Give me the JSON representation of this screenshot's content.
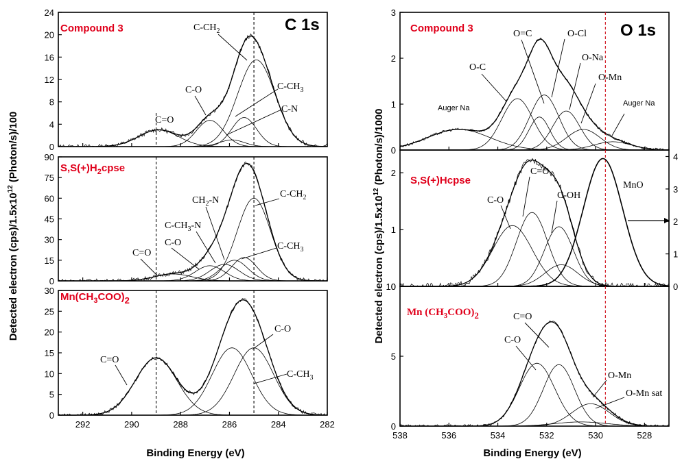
{
  "xlabel_left": "Binding Energy (eV)",
  "xlabel_right": "Binding Energy (eV)",
  "ylabel_left": "Detected electron (cps)/1.5x10¹² (Photon/s)/100",
  "ylabel_right": "Detected electron (cps)/1.5x10¹² (Photon/s)/1000",
  "chart_data": [
    {
      "id": "c1s_compound3",
      "type": "line",
      "core": "C 1s",
      "sample": "Compound 3",
      "xlim": [
        293,
        282
      ],
      "ylim": [
        0,
        24
      ],
      "xticks": [
        292,
        290,
        288,
        286,
        284,
        282
      ],
      "yticks": [
        0,
        4,
        8,
        12,
        16,
        20,
        24
      ],
      "peaks": [
        {
          "label": "C=O",
          "center": 288.9,
          "height": 3.0,
          "fwhm": 1.9
        },
        {
          "label": "C-O",
          "center": 286.8,
          "height": 4.7,
          "fwhm": 1.3
        },
        {
          "label": "C-CH3",
          "center": 285.4,
          "height": 5.2,
          "fwhm": 1.2
        },
        {
          "label": "C-N",
          "center": 285.9,
          "height": 1.2,
          "fwhm": 1.2
        },
        {
          "label": "C-CH2",
          "center": 284.9,
          "height": 15.5,
          "fwhm": 1.8
        },
        {
          "label": "",
          "center": 285.6,
          "height": 0.0,
          "fwhm": 1.0
        }
      ],
      "dashed_lines": [
        289.0,
        285.0
      ]
    },
    {
      "id": "c1s_ssh2cpse",
      "type": "line",
      "sample": "S,S(+)H2cpse",
      "xlim": [
        293,
        282
      ],
      "ylim": [
        0,
        90
      ],
      "xticks": [
        292,
        290,
        288,
        286,
        284,
        282
      ],
      "yticks": [
        0,
        15,
        30,
        45,
        60,
        75,
        90
      ],
      "peaks": [
        {
          "label": "C=O",
          "center": 288.3,
          "height": 5.0,
          "fwhm": 1.8
        },
        {
          "label": "C-O",
          "center": 286.8,
          "height": 11.0,
          "fwhm": 1.4
        },
        {
          "label": "C-CH3-N",
          "center": 286.2,
          "height": 12.0,
          "fwhm": 1.4
        },
        {
          "label": "CH2-N",
          "center": 285.8,
          "height": 15.0,
          "fwhm": 1.3
        },
        {
          "label": "C-CH3",
          "center": 285.4,
          "height": 17.0,
          "fwhm": 1.2
        },
        {
          "label": "C-CH2",
          "center": 285.0,
          "height": 60.0,
          "fwhm": 1.6
        }
      ],
      "dashed_lines": [
        289.0,
        285.0
      ]
    },
    {
      "id": "c1s_mnac",
      "type": "line",
      "sample": "Mn(CH3COO)2",
      "xlim": [
        293,
        282
      ],
      "ylim": [
        0,
        30
      ],
      "xticks": [
        292,
        290,
        288,
        286,
        284,
        282
      ],
      "xtick_labels": [
        "292",
        "290",
        "288",
        "286",
        "284",
        "282"
      ],
      "yticks": [
        0,
        5,
        10,
        15,
        20,
        25,
        30
      ],
      "peaks": [
        {
          "label": "C=O",
          "center": 289.0,
          "height": 13.8,
          "fwhm": 2.0
        },
        {
          "label": "C-O",
          "center": 285.9,
          "height": 16.2,
          "fwhm": 1.9
        },
        {
          "label": "C-CH3",
          "center": 285.0,
          "height": 16.2,
          "fwhm": 1.9
        }
      ],
      "dashed_lines": [
        289.0,
        285.0
      ]
    },
    {
      "id": "o1s_compound3",
      "type": "line",
      "core": "O 1s",
      "sample": "Compound 3",
      "xlim": [
        538,
        527
      ],
      "ylim": [
        0,
        3
      ],
      "yticks": [
        0,
        1,
        2,
        3
      ],
      "peaks": [
        {
          "label": "Auger Na",
          "center": 535.6,
          "height": 0.45,
          "fwhm": 3.0
        },
        {
          "label": "O-C",
          "center": 533.2,
          "height": 1.12,
          "fwhm": 1.5
        },
        {
          "label": "O=C",
          "center": 532.3,
          "height": 0.72,
          "fwhm": 1.0
        },
        {
          "label": "O-Cl",
          "center": 532.1,
          "height": 1.2,
          "fwhm": 1.4
        },
        {
          "label": "O-Na",
          "center": 531.2,
          "height": 0.85,
          "fwhm": 1.3
        },
        {
          "label": "O-Mn",
          "center": 530.5,
          "height": 0.45,
          "fwhm": 1.6
        },
        {
          "label": "Auger Na",
          "center": 529.3,
          "height": 0.18,
          "fwhm": 1.8
        }
      ],
      "dashed_lines": [
        529.6
      ]
    },
    {
      "id": "o1s_sshcpse",
      "type": "line",
      "sample": "S,S(+)Hcpse",
      "xlim": [
        538,
        527
      ],
      "ylim": [
        0,
        2.4
      ],
      "yticks": [
        0,
        1,
        2
      ],
      "right_yticks": [
        0,
        1,
        2,
        3,
        4
      ],
      "right_ylim": [
        0,
        4.2
      ],
      "peaks": [
        {
          "label": "C-O",
          "center": 533.4,
          "height": 1.07,
          "fwhm": 1.9
        },
        {
          "label": "C=O",
          "center": 532.6,
          "height": 1.3,
          "fwhm": 1.5
        },
        {
          "label": "C-OH",
          "center": 531.5,
          "height": 1.05,
          "fwhm": 1.4
        },
        {
          "label": "",
          "center": 531.4,
          "height": 0.38,
          "fwhm": 1.6
        },
        {
          "label": "MnO",
          "center": 529.7,
          "height": 2.25,
          "fwhm": 1.9
        }
      ],
      "annotations": [
        "MnO"
      ],
      "dashed_lines": [
        529.6
      ]
    },
    {
      "id": "o1s_mnac",
      "type": "line",
      "sample": "Mn (CH3COO)2",
      "xlim": [
        538,
        527
      ],
      "ylim": [
        0,
        10
      ],
      "xticks": [
        538,
        536,
        534,
        532,
        530,
        528
      ],
      "yticks": [
        0,
        5,
        10
      ],
      "peaks": [
        {
          "label": "C-O",
          "center": 532.4,
          "height": 4.5,
          "fwhm": 1.7
        },
        {
          "label": "C=O",
          "center": 531.5,
          "height": 4.4,
          "fwhm": 1.5
        },
        {
          "label": "O-Mn",
          "center": 530.2,
          "height": 1.6,
          "fwhm": 1.8
        },
        {
          "label": "O-Mn sat",
          "center": 530.6,
          "height": 0.3,
          "fwhm": 2.5
        }
      ],
      "dashed_lines": [
        529.6
      ]
    }
  ]
}
